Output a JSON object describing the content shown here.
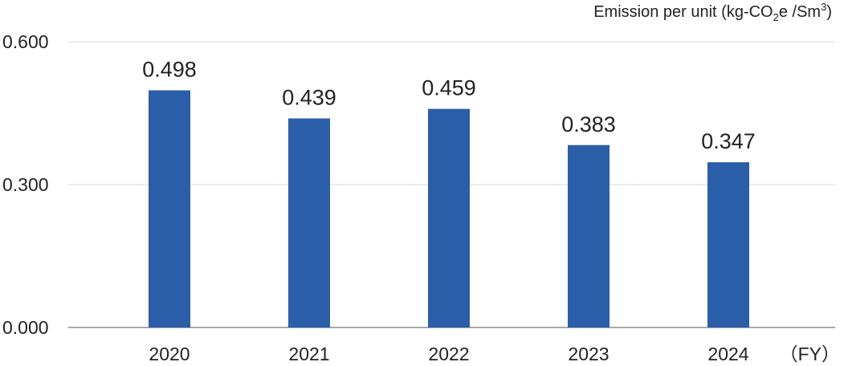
{
  "chart_data": {
    "type": "bar",
    "ylabel": {
      "prefix": "Emission per unit (kg-CO",
      "sub": "2",
      "mid": "e /Sm",
      "sup": "3",
      "suffix": ")"
    },
    "xlabel": "（FY）",
    "categories": [
      "2020",
      "2021",
      "2022",
      "2023",
      "2024"
    ],
    "values": [
      0.498,
      0.439,
      0.459,
      0.383,
      0.347
    ],
    "value_labels": [
      "0.498",
      "0.439",
      "0.459",
      "0.383",
      "0.347"
    ],
    "ylim": [
      0,
      0.6
    ],
    "yticks": [
      "0.000",
      "0.300",
      "0.600"
    ],
    "grid": true,
    "bar_color": "#2b5ea8",
    "grid_color": "#d9d9d9",
    "axis_color": "#8c8c8c"
  }
}
